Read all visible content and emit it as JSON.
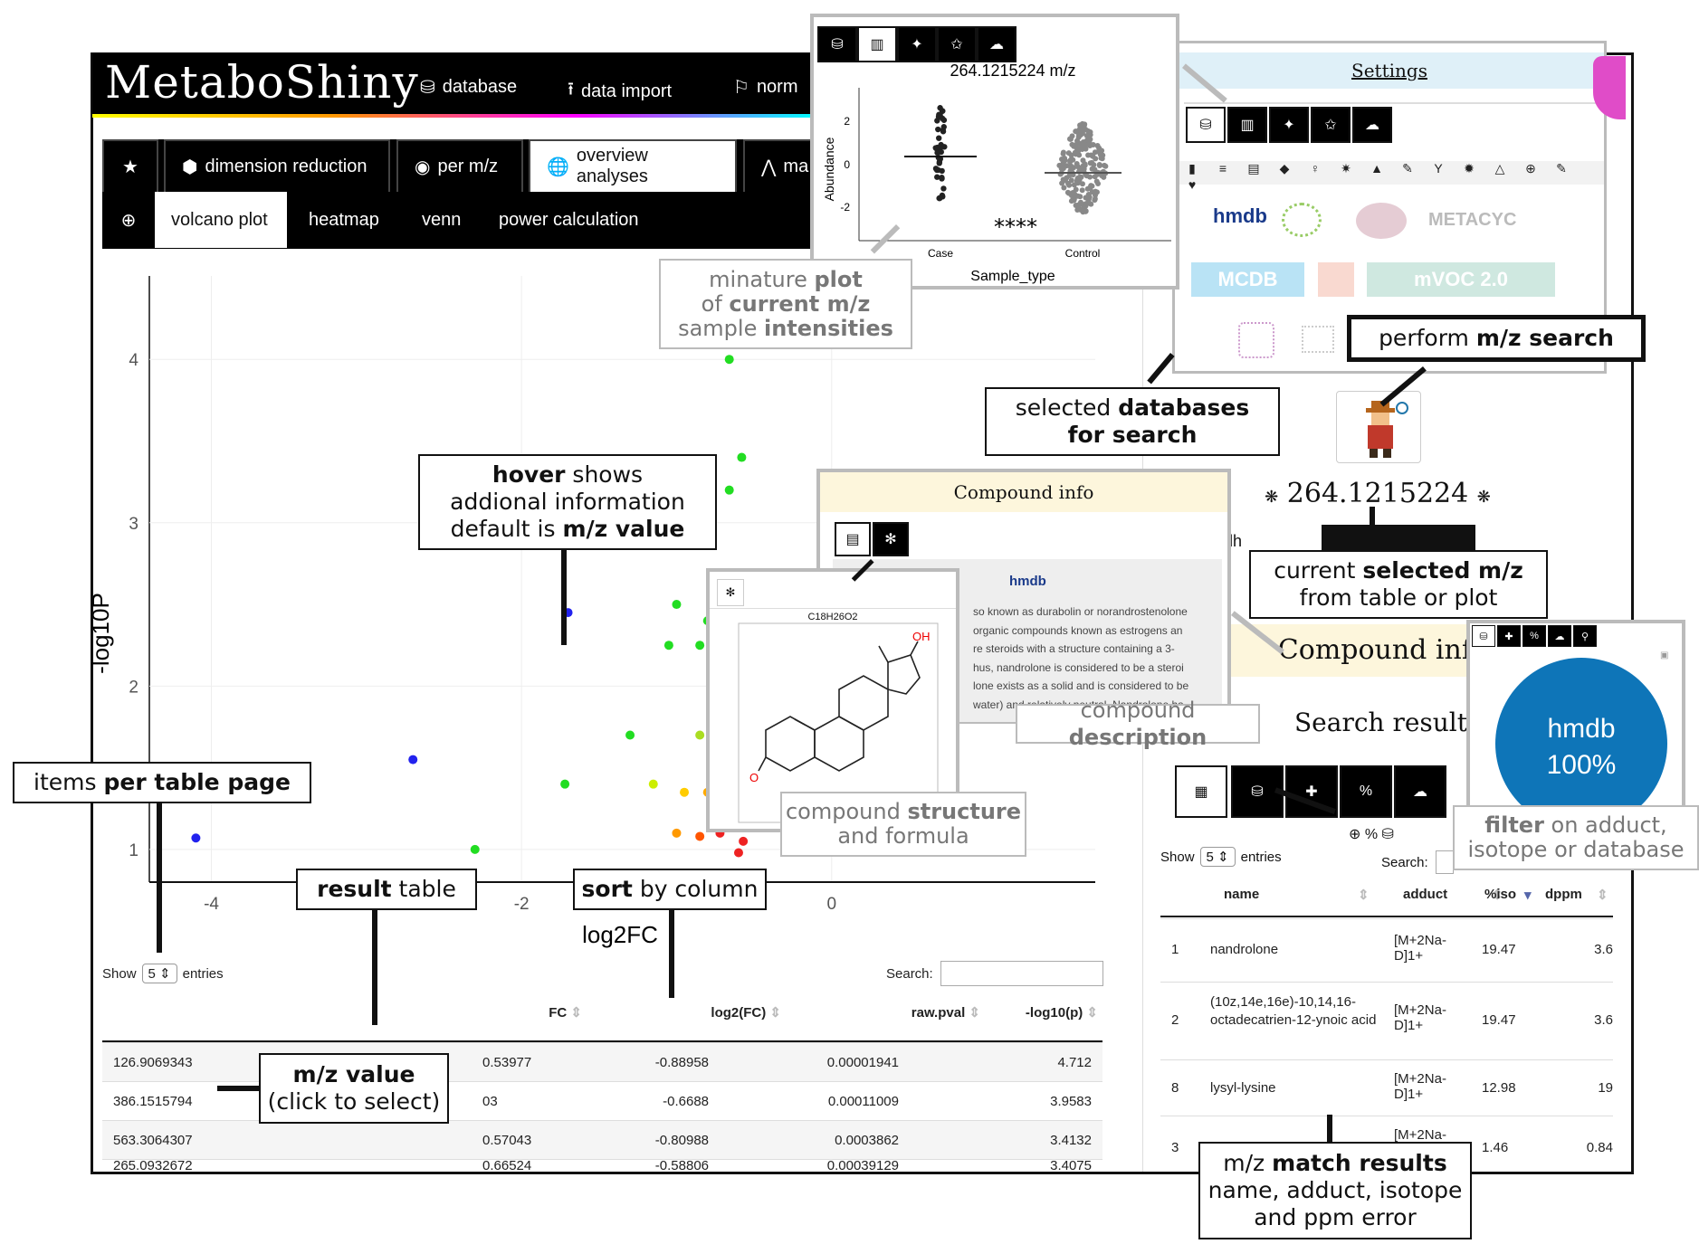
{
  "app": {
    "brand": "MetaboShiny"
  },
  "navbar": {
    "items": [
      {
        "icon": "database-icon",
        "glyph": "⛁",
        "label": "database"
      },
      {
        "icon": "upload-icon",
        "glyph": "⭱",
        "label": "data import"
      },
      {
        "icon": "normalize-icon",
        "glyph": "⚐",
        "label": "norm"
      }
    ]
  },
  "tabs": {
    "row1": [
      "dimension reduction",
      "per m/z",
      "overview analyses",
      "ma"
    ],
    "row2": [
      "volcano plot",
      "heatmap",
      "venn",
      "power calculation"
    ]
  },
  "volcano": {
    "xlabel": "log2FC",
    "ylabel": "-log10P",
    "xticks": [
      "-4",
      "-2",
      "0"
    ],
    "yticks": [
      "1",
      "2",
      "3",
      "4"
    ]
  },
  "chart_data": {
    "type": "scatter",
    "xlabel": "log2FC",
    "ylabel": "-log10P",
    "xlim": [
      -4.4,
      1.7
    ],
    "ylim": [
      0.8,
      4.4
    ],
    "points": [
      {
        "x": -0.66,
        "y": 4.0,
        "c": "#22dd22"
      },
      {
        "x": -0.58,
        "y": 3.4,
        "c": "#22dd22"
      },
      {
        "x": -0.66,
        "y": 3.2,
        "c": "#22dd22"
      },
      {
        "x": -1.7,
        "y": 2.45,
        "c": "#2222ee"
      },
      {
        "x": -1.0,
        "y": 2.5,
        "c": "#22dd22"
      },
      {
        "x": -0.8,
        "y": 2.4,
        "c": "#22dd22"
      },
      {
        "x": -1.05,
        "y": 2.25,
        "c": "#22dd22"
      },
      {
        "x": -0.85,
        "y": 2.25,
        "c": "#22dd22"
      },
      {
        "x": -0.68,
        "y": 2.55,
        "c": "#22dd22"
      },
      {
        "x": -0.66,
        "y": 2.3,
        "c": "#22dd22"
      },
      {
        "x": -0.75,
        "y": 2.05,
        "c": "#22dd22"
      },
      {
        "x": -0.6,
        "y": 2.05,
        "c": "#22dd22"
      },
      {
        "x": -1.3,
        "y": 1.7,
        "c": "#22dd22"
      },
      {
        "x": -1.72,
        "y": 1.4,
        "c": "#22dd22"
      },
      {
        "x": -2.3,
        "y": 1.0,
        "c": "#22dd22"
      },
      {
        "x": -2.7,
        "y": 1.55,
        "c": "#2222ee"
      },
      {
        "x": -4.1,
        "y": 1.45,
        "c": "#ee2222"
      },
      {
        "x": -4.1,
        "y": 1.07,
        "c": "#2222ee"
      },
      {
        "x": -0.85,
        "y": 1.7,
        "c": "#aadd22"
      },
      {
        "x": -0.75,
        "y": 1.6,
        "c": "#ffaa00"
      },
      {
        "x": -0.68,
        "y": 1.55,
        "c": "#ffcc00"
      },
      {
        "x": -1.15,
        "y": 1.4,
        "c": "#ccee00"
      },
      {
        "x": -0.95,
        "y": 1.35,
        "c": "#ffcc00"
      },
      {
        "x": -0.8,
        "y": 1.35,
        "c": "#ffaa00"
      },
      {
        "x": -0.65,
        "y": 1.3,
        "c": "#ff6600"
      },
      {
        "x": -0.55,
        "y": 1.2,
        "c": "#ff8800"
      },
      {
        "x": -1.0,
        "y": 1.1,
        "c": "#ff9900"
      },
      {
        "x": -0.85,
        "y": 1.08,
        "c": "#ff5500"
      },
      {
        "x": -0.72,
        "y": 1.1,
        "c": "#ee2222"
      },
      {
        "x": -0.58,
        "y": 1.15,
        "c": "#ee2222"
      },
      {
        "x": -0.57,
        "y": 1.05,
        "c": "#ee2222"
      },
      {
        "x": -0.6,
        "y": 0.98,
        "c": "#ee2222"
      },
      {
        "x": 0.6,
        "y": 1.02,
        "c": "#ee2222"
      },
      {
        "x": 0.9,
        "y": 1.05,
        "c": "#ff5500"
      },
      {
        "x": 1.2,
        "y": 1.1,
        "c": "#ffcc00"
      }
    ]
  },
  "results_table": {
    "show_label": "Show",
    "entries_label": "entries",
    "page_size": "5",
    "search_label": "Search:",
    "columns": [
      "FC",
      "log2(FC)",
      "raw.pval",
      "-log10(p)"
    ],
    "rows": [
      {
        "mz": "126.9069343",
        "fc": "0.53977",
        "log2fc": "-0.88958",
        "pval": "0.00001941",
        "logp": "4.712"
      },
      {
        "mz": "386.1515794",
        "fc": "03",
        "log2fc": "-0.6688",
        "pval": "0.00011009",
        "logp": "3.9583"
      },
      {
        "mz": "563.3064307",
        "fc": "0.57043",
        "log2fc": "-0.80988",
        "pval": "0.0003862",
        "logp": "3.4132"
      },
      {
        "mz": "265.0932672",
        "fc": "0.66524",
        "log2fc": "-0.58806",
        "pval": "0.00039129",
        "logp": "3.4075"
      }
    ]
  },
  "mini_plot": {
    "title": "264.1215224 m/z",
    "ylabel": "Abundance",
    "xlabel": "Sample_type",
    "categories": [
      "Case",
      "Control"
    ],
    "yticks": [
      "2",
      "0",
      "-2"
    ],
    "significance": "****"
  },
  "settings": {
    "title": "Settings",
    "databases": [
      "hmdb",
      "METACYC",
      "MCDB",
      "mVOC 2.0"
    ]
  },
  "current_mz": {
    "value": "264.1215224",
    "tab_fragment": "ndh"
  },
  "compound_info": {
    "title": "Compound info",
    "source": "hmdb",
    "formula": "C18H26O2",
    "description_lines": [
      "so known as durabolin or norandrostenolone",
      "organic compounds known as estrogens an",
      "re steroids with a structure containing a 3-",
      "hus, nandrolone is considered to be a steroi",
      "lone exists as a solid and is considered to be",
      "water) and relatively neutral. Nandrolone ha"
    ],
    "oh_label": "OH",
    "o_label": "O"
  },
  "compound_info_side": {
    "title": "Compound info"
  },
  "search_results": {
    "title": "Search results",
    "show_label": "Show",
    "entries_label": "entries",
    "page_size": "5",
    "search_label": "Search:",
    "columns": [
      "name",
      "adduct",
      "%iso",
      "dppm"
    ],
    "rows": [
      {
        "id": "1",
        "name": "nandrolone",
        "adduct": "[M+2Na-D]1+",
        "iso": "19.47",
        "dppm": "3.6"
      },
      {
        "id": "2",
        "name": "(10z,14e,16e)-10,14,16-octadecatrien-12-ynoic acid",
        "adduct": "[M+2Na-D]1+",
        "iso": "19.47",
        "dppm": "3.6"
      },
      {
        "id": "8",
        "name": "lysyl-lysine",
        "adduct": "[M+2Na-D]1+",
        "iso": "12.98",
        "dppm": "19"
      },
      {
        "id": "3",
        "name": "",
        "adduct": "[M+2Na-",
        "iso": "1.46",
        "dppm": "0.84"
      }
    ]
  },
  "pie": {
    "label": "hmdb",
    "percent": "100%",
    "color": "#0e75b8",
    "fraction": 1.0
  },
  "callouts": {
    "mini_plot": [
      "minature ",
      "plot",
      "of ",
      "current m/z",
      "sample ",
      "intensities"
    ],
    "selected_db": [
      "selected ",
      "databases",
      "for search"
    ],
    "mz_search": [
      "perform ",
      "m/z search"
    ],
    "hover": [
      "hover",
      " shows",
      "addional information",
      "default is ",
      "m/z value"
    ],
    "current_mz": [
      "current ",
      "selected m/z",
      "from table or plot"
    ],
    "compound_desc": [
      "compound ",
      "description"
    ],
    "structure": [
      "compound ",
      "structure",
      "and formula"
    ],
    "filter": [
      "filter",
      " on adduct,",
      "isotope or database"
    ],
    "items_page": [
      "items ",
      "per table page"
    ],
    "result_table": [
      "result",
      " table"
    ],
    "sort": [
      "sort",
      " by column"
    ],
    "mz_value": [
      "m/z value",
      "(click to select)"
    ],
    "match": [
      "m/z ",
      "match results",
      "name, adduct, isotope",
      "and ppm error"
    ]
  }
}
